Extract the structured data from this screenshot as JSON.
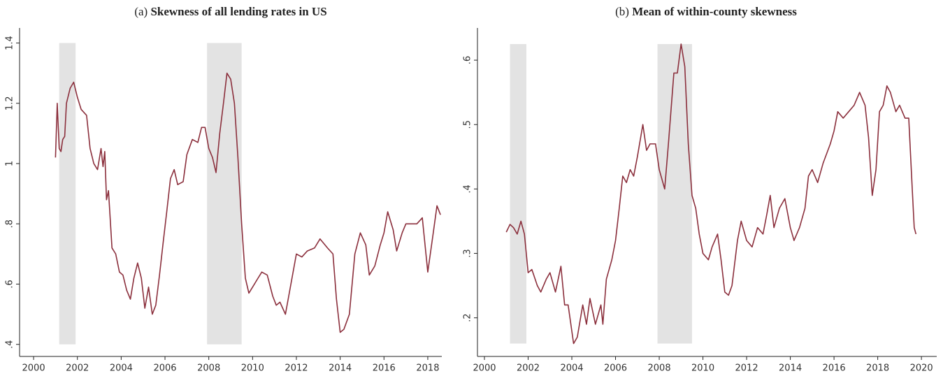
{
  "chart_data": [
    {
      "type": "line",
      "label": "(a)",
      "title": "Skewness of all lending rates in US",
      "color": "#8b2f3c",
      "shade_color": "#e3e3e3",
      "shaded_periods": [
        {
          "start": 2001.17,
          "end": 2001.92
        },
        {
          "start": 2007.92,
          "end": 2009.5
        }
      ],
      "x": [
        2001.0,
        2001.08,
        2001.17,
        2001.25,
        2001.33,
        2001.42,
        2001.5,
        2001.67,
        2001.83,
        2002.0,
        2002.17,
        2002.42,
        2002.58,
        2002.75,
        2002.92,
        2003.08,
        2003.17,
        2003.25,
        2003.33,
        2003.42,
        2003.58,
        2003.75,
        2003.92,
        2004.08,
        2004.25,
        2004.42,
        2004.58,
        2004.75,
        2004.92,
        2005.08,
        2005.25,
        2005.42,
        2005.58,
        2005.75,
        2005.92,
        2006.08,
        2006.25,
        2006.42,
        2006.58,
        2006.83,
        2007.0,
        2007.25,
        2007.5,
        2007.67,
        2007.83,
        2008.0,
        2008.17,
        2008.33,
        2008.5,
        2008.67,
        2008.83,
        2009.0,
        2009.17,
        2009.33,
        2009.5,
        2009.67,
        2009.83,
        2010.0,
        2010.25,
        2010.42,
        2010.67,
        2010.92,
        2011.08,
        2011.25,
        2011.5,
        2011.75,
        2012.0,
        2012.25,
        2012.5,
        2012.83,
        2013.08,
        2013.42,
        2013.67,
        2013.83,
        2014.0,
        2014.17,
        2014.42,
        2014.67,
        2014.92,
        2015.17,
        2015.33,
        2015.58,
        2015.83,
        2016.0,
        2016.17,
        2016.42,
        2016.58,
        2016.83,
        2017.0,
        2017.33,
        2017.5,
        2017.75,
        2018.0,
        2018.25,
        2018.42,
        2018.58
      ],
      "values": [
        1.02,
        1.2,
        1.05,
        1.04,
        1.08,
        1.09,
        1.2,
        1.25,
        1.27,
        1.22,
        1.18,
        1.16,
        1.05,
        1.0,
        0.98,
        1.05,
        0.99,
        1.04,
        0.88,
        0.91,
        0.72,
        0.7,
        0.64,
        0.63,
        0.58,
        0.55,
        0.62,
        0.67,
        0.62,
        0.52,
        0.59,
        0.5,
        0.53,
        0.63,
        0.74,
        0.84,
        0.95,
        0.98,
        0.93,
        0.94,
        1.03,
        1.08,
        1.07,
        1.12,
        1.12,
        1.05,
        1.02,
        0.97,
        1.1,
        1.2,
        1.3,
        1.28,
        1.2,
        1.02,
        0.8,
        0.62,
        0.57,
        0.59,
        0.62,
        0.64,
        0.63,
        0.56,
        0.53,
        0.54,
        0.5,
        0.6,
        0.7,
        0.69,
        0.71,
        0.72,
        0.75,
        0.72,
        0.7,
        0.55,
        0.44,
        0.45,
        0.5,
        0.7,
        0.77,
        0.73,
        0.63,
        0.66,
        0.73,
        0.77,
        0.84,
        0.78,
        0.71,
        0.77,
        0.8,
        0.8,
        0.8,
        0.82,
        0.64,
        0.77,
        0.86,
        0.83
      ],
      "xlim": [
        1999.36,
        2018.64
      ],
      "ylim": [
        0.36,
        1.45
      ],
      "xticks": [
        2000,
        2002,
        2004,
        2006,
        2008,
        2010,
        2012,
        2014,
        2016,
        2018
      ],
      "yticks": [
        {
          "value": 0.4,
          "label": ".4"
        },
        {
          "value": 0.6,
          "label": ".6"
        },
        {
          "value": 0.8,
          "label": ".8"
        },
        1,
        1.2,
        1.4
      ]
    },
    {
      "type": "line",
      "label": "(b)",
      "title": "Mean of within-county skewness",
      "color": "#8b2f3c",
      "shade_color": "#e3e3e3",
      "shaded_periods": [
        {
          "start": 2001.17,
          "end": 2001.92
        },
        {
          "start": 2007.92,
          "end": 2009.5
        }
      ],
      "x": [
        2001.0,
        2001.17,
        2001.33,
        2001.5,
        2001.67,
        2001.83,
        2002.0,
        2002.17,
        2002.42,
        2002.58,
        2002.83,
        2003.0,
        2003.25,
        2003.5,
        2003.67,
        2003.83,
        2004.08,
        2004.25,
        2004.5,
        2004.67,
        2004.83,
        2005.08,
        2005.33,
        2005.42,
        2005.58,
        2005.83,
        2006.0,
        2006.17,
        2006.33,
        2006.5,
        2006.67,
        2006.83,
        2007.0,
        2007.25,
        2007.42,
        2007.58,
        2007.83,
        2008.0,
        2008.25,
        2008.42,
        2008.67,
        2008.83,
        2009.0,
        2009.17,
        2009.33,
        2009.5,
        2009.67,
        2009.83,
        2010.0,
        2010.25,
        2010.42,
        2010.67,
        2010.83,
        2011.0,
        2011.17,
        2011.33,
        2011.58,
        2011.75,
        2012.0,
        2012.25,
        2012.5,
        2012.75,
        2012.92,
        2013.08,
        2013.25,
        2013.5,
        2013.75,
        2014.0,
        2014.17,
        2014.42,
        2014.67,
        2014.83,
        2015.0,
        2015.25,
        2015.5,
        2015.83,
        2016.0,
        2016.17,
        2016.42,
        2016.67,
        2016.92,
        2017.17,
        2017.42,
        2017.58,
        2017.75,
        2017.92,
        2018.08,
        2018.25,
        2018.42,
        2018.58,
        2018.83,
        2019.0,
        2019.25,
        2019.42,
        2019.58,
        2019.67,
        2019.75
      ],
      "values": [
        0.333,
        0.345,
        0.34,
        0.33,
        0.35,
        0.33,
        0.27,
        0.275,
        0.25,
        0.24,
        0.26,
        0.27,
        0.24,
        0.28,
        0.22,
        0.22,
        0.16,
        0.17,
        0.22,
        0.19,
        0.23,
        0.19,
        0.22,
        0.19,
        0.26,
        0.29,
        0.32,
        0.37,
        0.42,
        0.41,
        0.43,
        0.42,
        0.45,
        0.5,
        0.46,
        0.47,
        0.47,
        0.43,
        0.4,
        0.47,
        0.58,
        0.58,
        0.625,
        0.59,
        0.47,
        0.39,
        0.37,
        0.33,
        0.3,
        0.29,
        0.31,
        0.33,
        0.29,
        0.24,
        0.235,
        0.25,
        0.32,
        0.35,
        0.32,
        0.31,
        0.34,
        0.33,
        0.36,
        0.39,
        0.34,
        0.37,
        0.385,
        0.34,
        0.32,
        0.34,
        0.37,
        0.42,
        0.43,
        0.41,
        0.44,
        0.47,
        0.49,
        0.52,
        0.51,
        0.52,
        0.53,
        0.55,
        0.53,
        0.48,
        0.39,
        0.43,
        0.52,
        0.53,
        0.56,
        0.55,
        0.52,
        0.53,
        0.51,
        0.51,
        0.4,
        0.34,
        0.33
      ],
      "xlim": [
        1999.68,
        2020.7
      ],
      "ylim": [
        0.14,
        0.65
      ],
      "xticks": [
        2000,
        2002,
        2004,
        2006,
        2008,
        2010,
        2012,
        2014,
        2016,
        2018,
        2020
      ],
      "yticks": [
        {
          "value": 0.2,
          "label": ".2"
        },
        {
          "value": 0.3,
          "label": ".3"
        },
        {
          "value": 0.4,
          "label": ".4"
        },
        {
          "value": 0.5,
          "label": ".5"
        },
        {
          "value": 0.6,
          "label": ".6"
        }
      ]
    }
  ]
}
